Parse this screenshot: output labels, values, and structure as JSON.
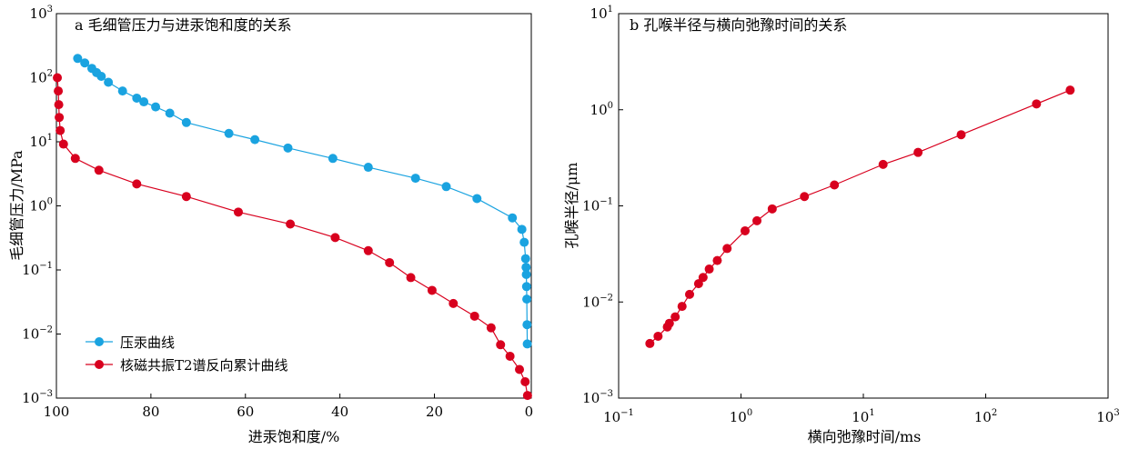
{
  "chart_data": [
    {
      "type": "scatter",
      "title": "a 毛细管压力与进汞饱和度的关系",
      "xlabel": "进汞饱和度/%",
      "ylabel": "毛细管压力/MPa",
      "x_reversed": true,
      "xlim": [
        100,
        -0.5
      ],
      "ylim": [
        0.001,
        1000
      ],
      "yscale": "log",
      "x_ticks": [
        100,
        80,
        60,
        40,
        20,
        0
      ],
      "x_tick_labels": [
        "100",
        "80",
        "60",
        "40",
        "20",
        "0"
      ],
      "y_ticks": [
        0.001,
        0.01,
        0.1,
        1,
        10,
        100,
        1000
      ],
      "y_tick_labels": [
        {
          "base": "10",
          "exp": "−3"
        },
        {
          "base": "10",
          "exp": "−2"
        },
        {
          "base": "10",
          "exp": "−1"
        },
        {
          "base": "10",
          "exp": "0"
        },
        {
          "base": "10",
          "exp": "1"
        },
        {
          "base": "10",
          "exp": "2"
        },
        {
          "base": "10",
          "exp": "3"
        }
      ],
      "legend_position": "bottom-left",
      "series": [
        {
          "name": "压汞曲线",
          "color": "#1aa3e0",
          "points": [
            [
              95.5,
              200
            ],
            [
              94,
              170
            ],
            [
              92.5,
              140
            ],
            [
              91.5,
              120
            ],
            [
              90.5,
              105
            ],
            [
              89,
              85
            ],
            [
              86,
              62
            ],
            [
              83,
              48
            ],
            [
              81.5,
              42
            ],
            [
              79,
              35
            ],
            [
              76,
              28
            ],
            [
              72.5,
              20
            ],
            [
              63.5,
              13.5
            ],
            [
              58,
              10.8
            ],
            [
              51,
              8.0
            ],
            [
              41.5,
              5.5
            ],
            [
              34,
              4.0
            ],
            [
              24,
              2.7
            ],
            [
              17.5,
              2.0
            ],
            [
              11,
              1.3
            ],
            [
              3.5,
              0.65
            ],
            [
              1.5,
              0.43
            ],
            [
              1.0,
              0.27
            ],
            [
              0.7,
              0.15
            ],
            [
              0.6,
              0.11
            ],
            [
              0.55,
              0.085
            ],
            [
              0.5,
              0.055
            ],
            [
              0.45,
              0.035
            ],
            [
              0.4,
              0.014
            ],
            [
              0.35,
              0.007
            ]
          ]
        },
        {
          "name": "核磁共振T2谱反向累计曲线",
          "color": "#d8001e",
          "points": [
            [
              99.8,
              100
            ],
            [
              99.6,
              62
            ],
            [
              99.5,
              38
            ],
            [
              99.4,
              24
            ],
            [
              99.2,
              15
            ],
            [
              98.5,
              9.2
            ],
            [
              96,
              5.5
            ],
            [
              91,
              3.6
            ],
            [
              83,
              2.2
            ],
            [
              72.5,
              1.4
            ],
            [
              61.5,
              0.8
            ],
            [
              50.5,
              0.52
            ],
            [
              41,
              0.32
            ],
            [
              34,
              0.2
            ],
            [
              29.5,
              0.13
            ],
            [
              25,
              0.076
            ],
            [
              20.5,
              0.048
            ],
            [
              16,
              0.03
            ],
            [
              11.5,
              0.019
            ],
            [
              8,
              0.0125
            ],
            [
              6,
              0.0068
            ],
            [
              4,
              0.0045
            ],
            [
              2,
              0.0028
            ],
            [
              0.8,
              0.0018
            ],
            [
              0.3,
              0.0011
            ]
          ]
        }
      ]
    },
    {
      "type": "scatter",
      "title": "b 孔喉半径与横向弛豫时间的关系",
      "xlabel": "横向弛豫时间/ms",
      "ylabel": "孔喉半径/μm",
      "xscale": "log",
      "yscale": "log",
      "xlim": [
        0.1,
        1000
      ],
      "ylim": [
        0.001,
        10
      ],
      "x_ticks": [
        0.1,
        1,
        10,
        100,
        1000
      ],
      "x_tick_labels": [
        {
          "base": "10",
          "exp": "−1"
        },
        {
          "base": "10",
          "exp": "0"
        },
        {
          "base": "10",
          "exp": "1"
        },
        {
          "base": "10",
          "exp": "2"
        },
        {
          "base": "10",
          "exp": "3"
        }
      ],
      "y_ticks": [
        0.001,
        0.01,
        0.1,
        1,
        10
      ],
      "y_tick_labels": [
        {
          "base": "10",
          "exp": "−3"
        },
        {
          "base": "10",
          "exp": "−2"
        },
        {
          "base": "10",
          "exp": "−1"
        },
        {
          "base": "10",
          "exp": "0"
        },
        {
          "base": "10",
          "exp": "1"
        }
      ],
      "series": [
        {
          "color": "#d8001e",
          "points": [
            [
              0.18,
              0.0037
            ],
            [
              0.21,
              0.0044
            ],
            [
              0.25,
              0.0055
            ],
            [
              0.26,
              0.006
            ],
            [
              0.29,
              0.007
            ],
            [
              0.33,
              0.009
            ],
            [
              0.38,
              0.012
            ],
            [
              0.45,
              0.0155
            ],
            [
              0.49,
              0.018
            ],
            [
              0.55,
              0.022
            ],
            [
              0.64,
              0.027
            ],
            [
              0.77,
              0.036
            ],
            [
              1.08,
              0.055
            ],
            [
              1.35,
              0.07
            ],
            [
              1.8,
              0.093
            ],
            [
              3.3,
              0.125
            ],
            [
              5.8,
              0.165
            ],
            [
              14.5,
              0.27
            ],
            [
              28,
              0.36
            ],
            [
              63,
              0.55
            ],
            [
              260,
              1.15
            ],
            [
              490,
              1.6
            ]
          ]
        }
      ]
    }
  ]
}
